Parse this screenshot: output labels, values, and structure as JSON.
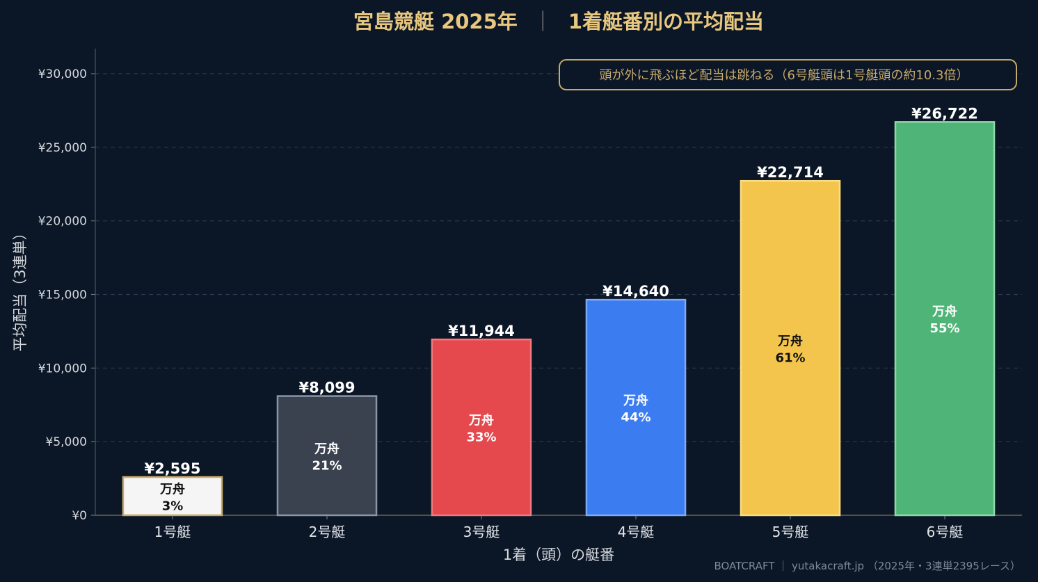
{
  "title": {
    "main": "宮島競艇 2025年",
    "separator": "｜",
    "sub": "1着艇番別の平均配当",
    "color": "#e8c77f"
  },
  "annotation": {
    "text": "頭が外に飛ぶほど配当は跳ねる（6号艇頭は1号艇頭の約10.3倍）",
    "color": "#c7a96b"
  },
  "footer": "BOATCRAFT ｜ yutakacraft.jp （2025年・3連単2395レース）",
  "inner_label_prefix": "万舟",
  "chart_data": {
    "type": "bar",
    "title": "宮島競艇 2025年 ｜ 1着艇番別の平均配当",
    "xlabel": "1着（頭）の艇番",
    "ylabel": "平均配当（3連単）",
    "ylim": [
      0,
      31700
    ],
    "yticks": [
      0,
      5000,
      10000,
      15000,
      20000,
      25000,
      30000
    ],
    "ytick_labels": [
      "¥0",
      "¥5,000",
      "¥10,000",
      "¥15,000",
      "¥20,000",
      "¥25,000",
      "¥30,000"
    ],
    "grid": true,
    "categories": [
      "1号艇",
      "2号艇",
      "3号艇",
      "4号艇",
      "5号艇",
      "6号艇"
    ],
    "values": [
      2595,
      8099,
      11944,
      14640,
      22714,
      26722
    ],
    "value_labels": [
      "¥2,595",
      "¥8,099",
      "¥11,944",
      "¥14,640",
      "¥22,714",
      "¥26,722"
    ],
    "manshu_rates": [
      "3%",
      "21%",
      "33%",
      "44%",
      "61%",
      "55%"
    ],
    "colors": [
      "#f5f5f5",
      "#3a4250",
      "#e5484d",
      "#3b7cf0",
      "#f4c54c",
      "#4fb477"
    ],
    "edge_colors": [
      "#c7a96b",
      "#8a95a5",
      "#f07a7e",
      "#7eaaf7",
      "#f8dd86",
      "#8fd8a9"
    ],
    "inner_text_colors": [
      "#111111",
      "#ffffff",
      "#ffffff",
      "#ffffff",
      "#111111",
      "#ffffff"
    ]
  }
}
